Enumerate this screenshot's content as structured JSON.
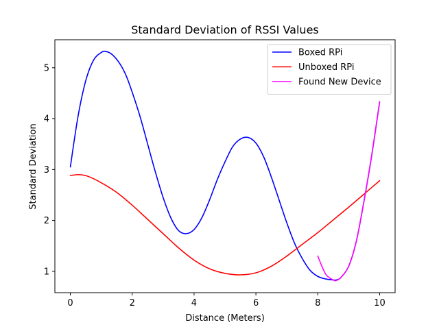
{
  "chart_data": {
    "type": "line",
    "title": "Standard Deviation of RSSI Values",
    "xlabel": "Distance (Meters)",
    "ylabel": "Standard Deviation",
    "xlim": [
      -0.5,
      10.5
    ],
    "ylim": [
      0.58,
      5.55
    ],
    "xticks": [
      0,
      2,
      4,
      6,
      8,
      10
    ],
    "yticks": [
      1,
      2,
      3,
      4,
      5
    ],
    "grid": false,
    "legend_position": "top-right",
    "series": [
      {
        "name": "Boxed RPi",
        "color": "#0000ff",
        "x": [
          0,
          0.25,
          0.5,
          0.75,
          1.0,
          1.15,
          1.35,
          1.6,
          1.8,
          2.0,
          2.25,
          2.5,
          2.75,
          3.0,
          3.25,
          3.5,
          3.75,
          4.0,
          4.25,
          4.5,
          4.75,
          5.0,
          5.25,
          5.5,
          5.75,
          6.0,
          6.25,
          6.5,
          6.75,
          7.0,
          7.25,
          7.5,
          7.75,
          8.0,
          8.25,
          8.5,
          8.6,
          8.75,
          9.0,
          9.25,
          9.5,
          9.75,
          10.0
        ],
        "y": [
          3.05,
          4.05,
          4.75,
          5.15,
          5.3,
          5.32,
          5.26,
          5.08,
          4.85,
          4.52,
          4.05,
          3.5,
          2.95,
          2.45,
          2.05,
          1.8,
          1.74,
          1.82,
          2.05,
          2.4,
          2.8,
          3.15,
          3.45,
          3.6,
          3.63,
          3.52,
          3.25,
          2.85,
          2.4,
          1.95,
          1.55,
          1.25,
          1.02,
          0.9,
          0.85,
          0.83,
          0.83,
          0.88,
          1.1,
          1.6,
          2.4,
          3.3,
          4.33
        ]
      },
      {
        "name": "Unboxed RPi",
        "color": "#ff0000",
        "x": [
          0,
          0.25,
          0.5,
          0.75,
          1.0,
          1.5,
          2.0,
          2.5,
          3.0,
          3.5,
          4.0,
          4.5,
          5.0,
          5.5,
          6.0,
          6.5,
          7.0,
          7.5,
          8.0,
          8.5,
          9.0,
          9.5,
          10.0
        ],
        "y": [
          2.88,
          2.9,
          2.88,
          2.82,
          2.74,
          2.55,
          2.3,
          2.02,
          1.74,
          1.46,
          1.22,
          1.05,
          0.96,
          0.93,
          0.97,
          1.1,
          1.3,
          1.53,
          1.76,
          2.01,
          2.26,
          2.52,
          2.78
        ]
      },
      {
        "name": "Found New Device",
        "color": "#ff00ff",
        "x": [
          8.0,
          8.25,
          8.5,
          8.6,
          8.75,
          9.0,
          9.25,
          9.5,
          9.75,
          10.0
        ],
        "y": [
          1.3,
          0.95,
          0.83,
          0.82,
          0.88,
          1.1,
          1.6,
          2.4,
          3.3,
          4.33
        ]
      }
    ]
  }
}
